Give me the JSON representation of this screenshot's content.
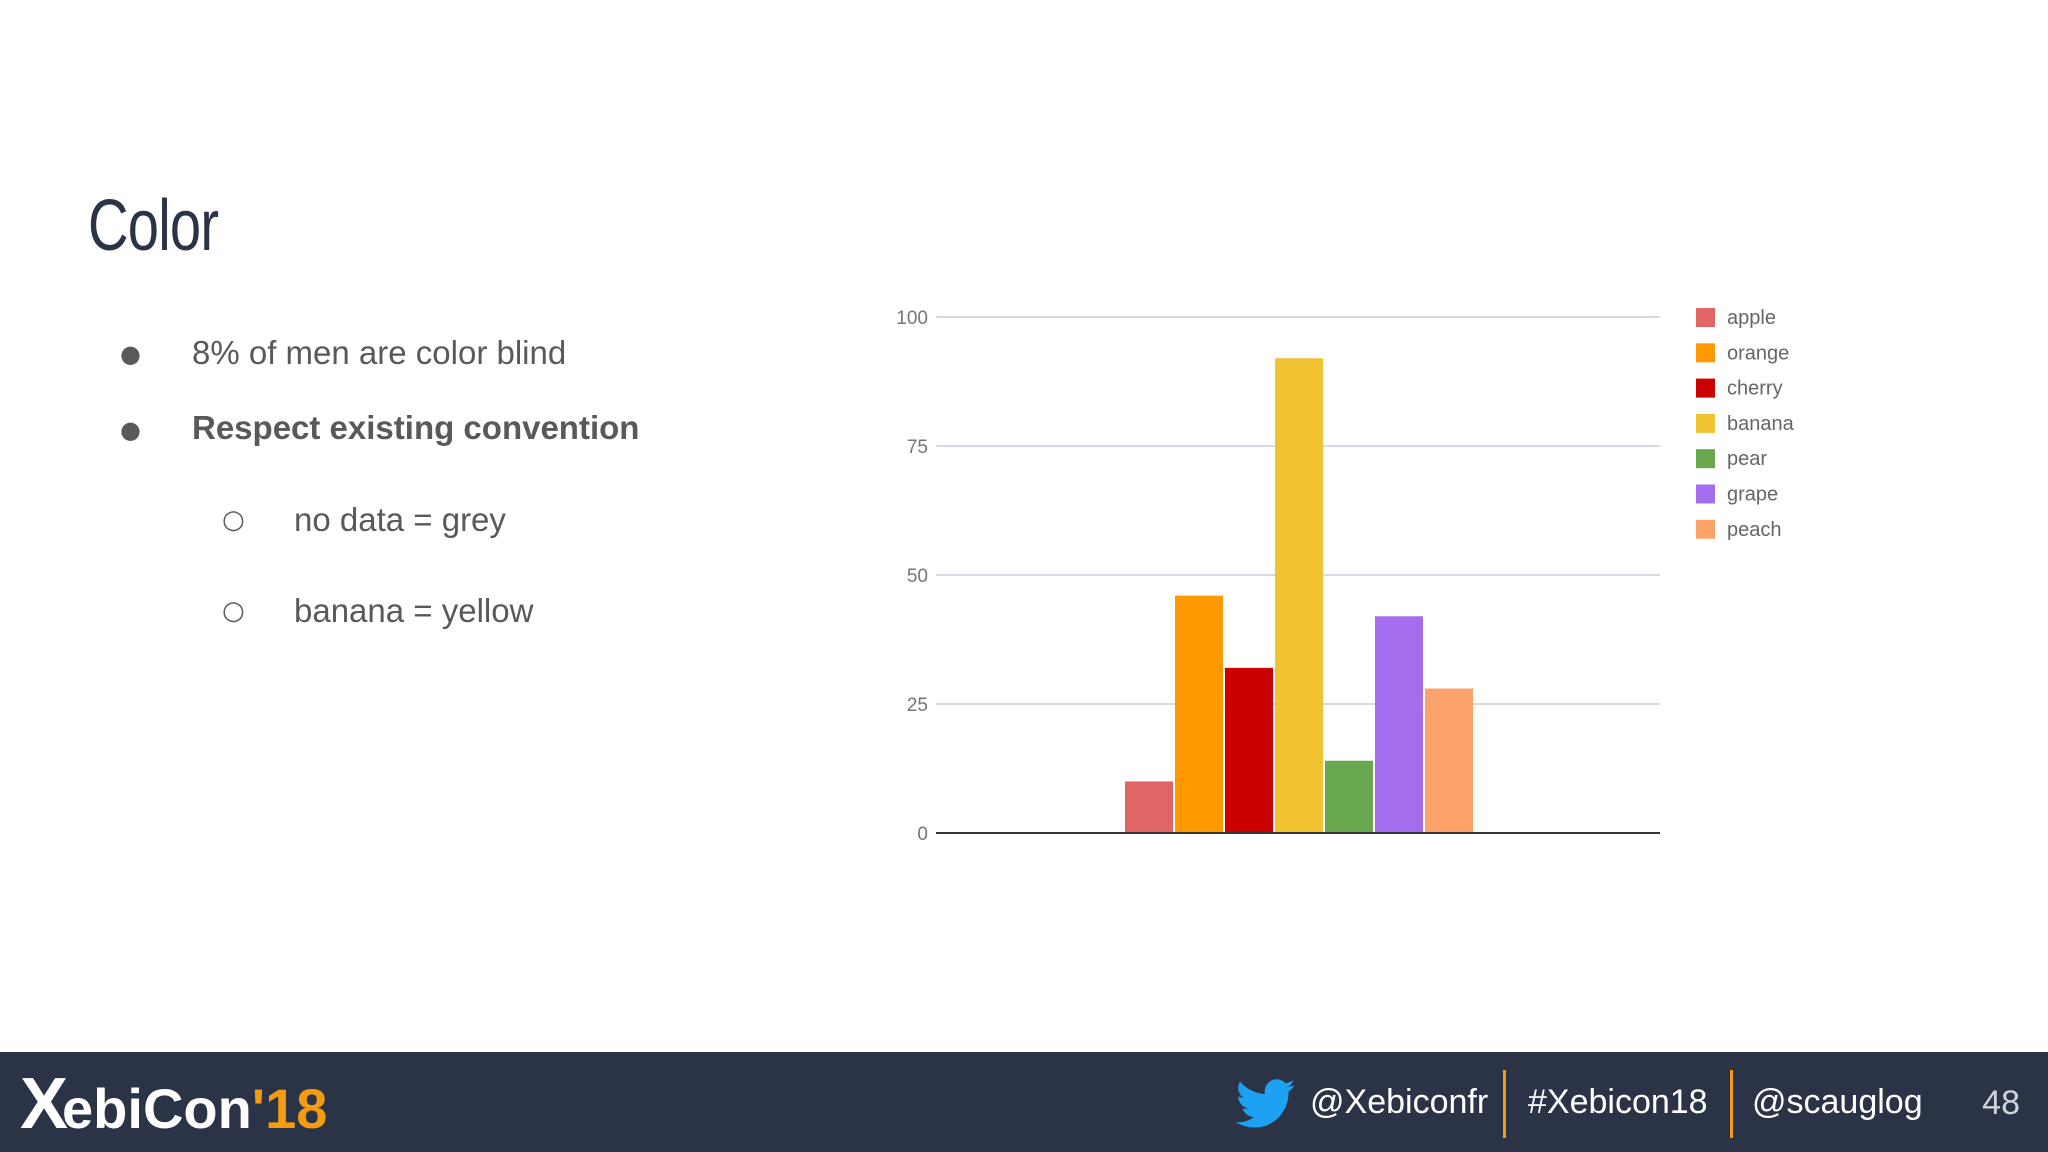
{
  "slide": {
    "title": "Color",
    "bullets": [
      {
        "text": "8% of men are color blind",
        "bold": false,
        "level": 1
      },
      {
        "text": "Respect existing convention",
        "bold": true,
        "level": 1
      },
      {
        "text": "no data = grey",
        "bold": false,
        "level": 2
      },
      {
        "text": "banana = yellow",
        "bold": false,
        "level": 2
      }
    ],
    "bullet_glyphs": {
      "level1": "●",
      "level2": "○"
    }
  },
  "chart_data": {
    "type": "bar",
    "title": "",
    "xlabel": "",
    "ylabel": "",
    "ylim": [
      0,
      100
    ],
    "yticks": [
      0,
      25,
      50,
      75,
      100
    ],
    "grid": true,
    "legend": "right",
    "series": [
      {
        "name": "apple",
        "value": 10,
        "color": "#e06666"
      },
      {
        "name": "orange",
        "value": 46,
        "color": "#ff9900"
      },
      {
        "name": "cherry",
        "value": 32,
        "color": "#cc0000"
      },
      {
        "name": "banana",
        "value": 92,
        "color": "#f1c232"
      },
      {
        "name": "pear",
        "value": 14,
        "color": "#6aa84f"
      },
      {
        "name": "grape",
        "value": 42,
        "color": "#a36ded"
      },
      {
        "name": "peach",
        "value": 28,
        "color": "#fca36b"
      }
    ]
  },
  "footer": {
    "logo_text": "ebiCon",
    "logo_x": "X",
    "logo_year": "'18",
    "twitter_handle": "@Xebiconfr",
    "hashtag": "#Xebicon18",
    "speaker_handle": "@scauglog",
    "page_number": "48",
    "accent_color": "#f39c12",
    "background_color": "#2b3447"
  }
}
